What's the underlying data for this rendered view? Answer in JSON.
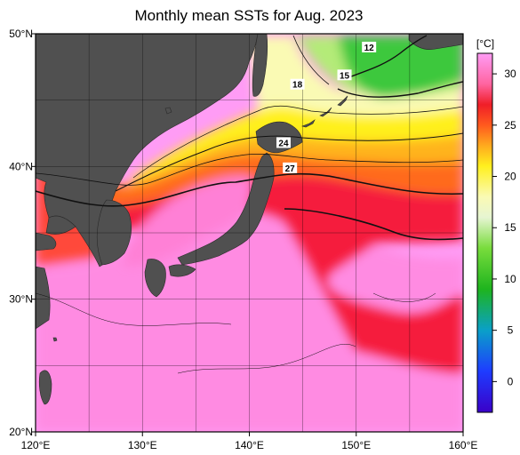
{
  "title": "Monthly mean SSTs for Aug. 2023",
  "map": {
    "x_axis": {
      "range_deg": [
        120,
        160
      ],
      "ticks": [
        {
          "value": 120,
          "label": "120°E"
        },
        {
          "value": 130,
          "label": "130°E"
        },
        {
          "value": 140,
          "label": "140°E"
        },
        {
          "value": 150,
          "label": "150°E"
        },
        {
          "value": 160,
          "label": "160°E"
        }
      ]
    },
    "y_axis": {
      "range_deg": [
        20,
        50
      ],
      "ticks": [
        {
          "value": 20,
          "label": "20°N"
        },
        {
          "value": 30,
          "label": "30°N"
        },
        {
          "value": 40,
          "label": "40°N"
        },
        {
          "value": 50,
          "label": "50°N"
        }
      ]
    },
    "grid": true,
    "grid_step_deg": 5,
    "land_color": "#505050",
    "contour_labels": [
      {
        "text": "12",
        "lon": 151.2,
        "lat": 49.0
      },
      {
        "text": "15",
        "lon": 148.9,
        "lat": 46.9
      },
      {
        "text": "18",
        "lon": 144.5,
        "lat": 46.2
      },
      {
        "text": "24",
        "lon": 143.2,
        "lat": 41.8
      },
      {
        "text": "27",
        "lon": 143.8,
        "lat": 39.9
      }
    ]
  },
  "colorbar": {
    "unit": "[°C]",
    "range": [
      -3,
      32
    ],
    "ticks": [
      {
        "value": 0,
        "label": "0"
      },
      {
        "value": 5,
        "label": "5"
      },
      {
        "value": 10,
        "label": "10"
      },
      {
        "value": 15,
        "label": "15"
      },
      {
        "value": 20,
        "label": "20"
      },
      {
        "value": 25,
        "label": "25"
      },
      {
        "value": 30,
        "label": "30"
      }
    ],
    "stops": [
      {
        "value": -3,
        "color": "#3a00c8"
      },
      {
        "value": 1,
        "color": "#1e3cff"
      },
      {
        "value": 5,
        "color": "#0aa0c8"
      },
      {
        "value": 9,
        "color": "#1eb41e"
      },
      {
        "value": 13,
        "color": "#78dc3c"
      },
      {
        "value": 16,
        "color": "#e6f5d2"
      },
      {
        "value": 18,
        "color": "#fafab4"
      },
      {
        "value": 21,
        "color": "#fff01e"
      },
      {
        "value": 23,
        "color": "#ffaa1e"
      },
      {
        "value": 25,
        "color": "#ff5a1e"
      },
      {
        "value": 27,
        "color": "#f01e28"
      },
      {
        "value": 29,
        "color": "#ff64a0"
      },
      {
        "value": 32,
        "color": "#ff9cf5"
      }
    ]
  }
}
